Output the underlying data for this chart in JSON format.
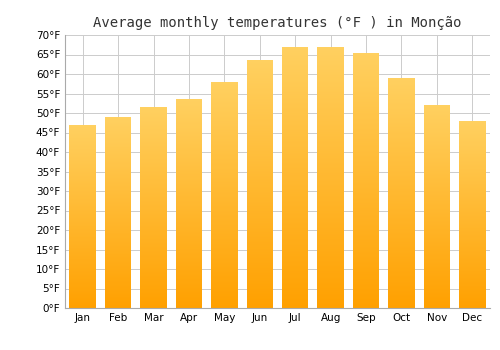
{
  "title": "Average monthly temperatures (°F ) in Monção",
  "months": [
    "Jan",
    "Feb",
    "Mar",
    "Apr",
    "May",
    "Jun",
    "Jul",
    "Aug",
    "Sep",
    "Oct",
    "Nov",
    "Dec"
  ],
  "values": [
    47.0,
    49.0,
    51.5,
    53.5,
    58.0,
    63.5,
    67.0,
    67.0,
    65.5,
    59.0,
    52.0,
    48.0
  ],
  "yticks": [
    0,
    5,
    10,
    15,
    20,
    25,
    30,
    35,
    40,
    45,
    50,
    55,
    60,
    65,
    70
  ],
  "ylim": [
    0,
    70
  ],
  "bar_color_top": "#FFD060",
  "bar_color_bottom": "#FFA000",
  "background_color": "#ffffff",
  "plot_bg_color": "#ffffff",
  "grid_color": "#cccccc",
  "title_fontsize": 10,
  "tick_fontsize": 7.5,
  "bar_width": 0.75
}
